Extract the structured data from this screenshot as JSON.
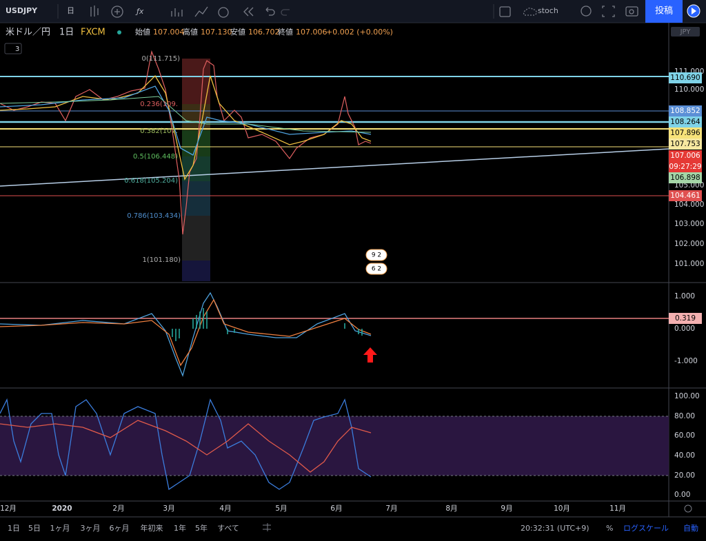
{
  "toolbar": {
    "symbol": "USDJPY",
    "interval": "日",
    "indicator": "stoch",
    "publish": "投稿"
  },
  "legend": {
    "name": "米ドル／円",
    "interval": "1日",
    "source": "FXCM",
    "open_label": "始値",
    "open": "107.004",
    "high_label": "高値",
    "high": "107.130",
    "low_label": "安値",
    "low": "106.702",
    "close_label": "終値",
    "close": "107.006",
    "change": "+0.002 (+0.00%)",
    "collapsed": "3"
  },
  "currency": "JPY",
  "price_axis": [
    "111.000",
    "110.000",
    "105.000",
    "104.000",
    "103.000",
    "102.000",
    "101.000"
  ],
  "price_labels": [
    "110.690",
    "108.852",
    "108.264",
    "107.896",
    "107.753",
    "107.006",
    "09:27:29",
    "106.898",
    "104.461"
  ],
  "fib_levels": [
    "0(111.715)",
    "0.236(109.",
    "0.382(107.",
    "0.5(106.448)",
    "0.618(105.204)",
    "0.786(103.434)",
    "1(101.180)"
  ],
  "badges": [
    "9 2",
    "6 2"
  ],
  "macd_axis": [
    "1.000",
    "0.000",
    "-1.000"
  ],
  "macd_label": "0.319",
  "stoch_axis": [
    "100.00",
    "80.00",
    "60.00",
    "40.00",
    "20.00",
    "0.00"
  ],
  "time_axis": [
    "12月",
    "2020",
    "2月",
    "3月",
    "4月",
    "5月",
    "6月",
    "7月",
    "8月",
    "9月",
    "10月",
    "11月"
  ],
  "ranges": [
    "1日",
    "5日",
    "1ヶ月",
    "3ヶ月",
    "6ヶ月",
    "年初来",
    "1年",
    "5年",
    "すべて"
  ],
  "footer": {
    "clock": "20:32:31 (UTC+9)",
    "percent": "%",
    "log_scale": "ログスケール",
    "auto": "自動"
  }
}
